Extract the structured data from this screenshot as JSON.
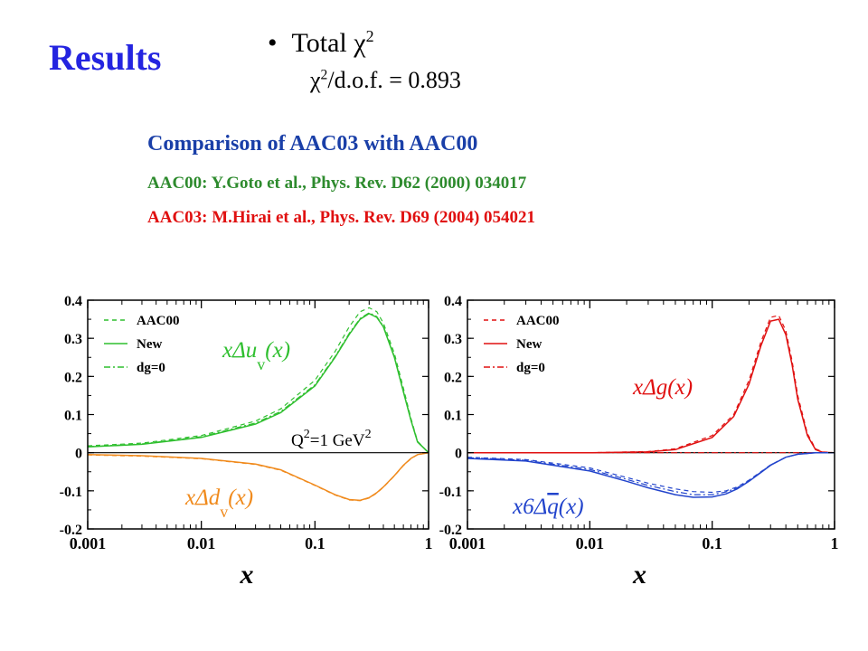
{
  "slide": {
    "title": "Results",
    "bullet_label": "Total",
    "chi_symbol": "χ",
    "chi_exponent": "2",
    "chi_text": "/d.o.f. = 0.893",
    "comparison_title": "Comparison of AAC03 with AAC00",
    "ref_aac00": "AAC00: Y.Goto et al., Phys. Rev. D62 (2000) 034017",
    "ref_aac03": "AAC03: M.Hirai et al., Phys. Rev. D69 (2004) 054021"
  },
  "chart_data": [
    {
      "type": "line",
      "xscale": "log",
      "xlim": [
        0.001,
        1
      ],
      "ylim": [
        -0.2,
        0.4
      ],
      "xticks": [
        "0.001",
        "0.01",
        "0.1",
        "1"
      ],
      "yticks": [
        "0.4",
        "0.3",
        "0.2",
        "0.1",
        "0",
        "-0.1",
        "-0.2"
      ],
      "xlabel": "x",
      "ylabel": "",
      "legend_position": "top-left",
      "legend": [
        {
          "label": "AAC00",
          "style": "dashed"
        },
        {
          "label": "New",
          "style": "solid"
        },
        {
          "label": "dg=0",
          "style": "dash-dot"
        }
      ],
      "annotations": [
        {
          "text_main": "xΔu",
          "text_sub": "v",
          "text_end": "(x)",
          "color": "#2fbf2f"
        },
        {
          "text_main": "xΔd",
          "text_sub": "v",
          "text_end": "(x)",
          "color": "#f08a1c"
        },
        {
          "text_main": "Q",
          "text_sup": "2",
          "text_mid": "=1 GeV",
          "text_sup2": "2",
          "color": "#000000"
        }
      ],
      "series": [
        {
          "name": "xΔu_v AAC00",
          "group": "up",
          "style": "dashed",
          "color": "#2fbf2f",
          "x": [
            0.001,
            0.003,
            0.01,
            0.03,
            0.05,
            0.1,
            0.15,
            0.2,
            0.25,
            0.3,
            0.35,
            0.4,
            0.5,
            0.6,
            0.7,
            0.8,
            1.0
          ],
          "values": [
            0.018,
            0.025,
            0.045,
            0.083,
            0.115,
            0.19,
            0.265,
            0.33,
            0.37,
            0.38,
            0.37,
            0.34,
            0.26,
            0.17,
            0.09,
            0.03,
            0.0
          ]
        },
        {
          "name": "xΔu_v New",
          "group": "up",
          "style": "solid",
          "color": "#2fbf2f",
          "x": [
            0.001,
            0.003,
            0.01,
            0.03,
            0.05,
            0.1,
            0.15,
            0.2,
            0.25,
            0.3,
            0.35,
            0.4,
            0.5,
            0.6,
            0.7,
            0.8,
            1.0
          ],
          "values": [
            0.015,
            0.022,
            0.04,
            0.075,
            0.105,
            0.175,
            0.25,
            0.31,
            0.35,
            0.365,
            0.355,
            0.33,
            0.25,
            0.16,
            0.085,
            0.028,
            0.0
          ]
        },
        {
          "name": "xΔu_v dg=0",
          "group": "up",
          "style": "dash-dot",
          "color": "#2fbf2f",
          "x": [
            0.001,
            0.003,
            0.01,
            0.03,
            0.05,
            0.1,
            0.15,
            0.2,
            0.25,
            0.3,
            0.35,
            0.4,
            0.5,
            0.6,
            0.7,
            0.8,
            1.0
          ],
          "values": [
            0.016,
            0.023,
            0.042,
            0.078,
            0.108,
            0.178,
            0.252,
            0.313,
            0.352,
            0.367,
            0.357,
            0.332,
            0.252,
            0.162,
            0.086,
            0.029,
            0.0
          ]
        },
        {
          "name": "xΔd_v New",
          "group": "down",
          "style": "solid",
          "color": "#f08a1c",
          "x": [
            0.001,
            0.003,
            0.01,
            0.03,
            0.05,
            0.1,
            0.15,
            0.2,
            0.25,
            0.3,
            0.35,
            0.4,
            0.5,
            0.6,
            0.7,
            0.8,
            1.0
          ],
          "values": [
            -0.005,
            -0.008,
            -0.015,
            -0.03,
            -0.045,
            -0.085,
            -0.11,
            -0.123,
            -0.125,
            -0.118,
            -0.105,
            -0.09,
            -0.06,
            -0.033,
            -0.015,
            -0.005,
            0.0
          ]
        },
        {
          "name": "xΔd_v AAC00",
          "group": "down",
          "style": "dashed",
          "color": "#f08a1c",
          "x": [
            0.001,
            0.003,
            0.01,
            0.03,
            0.05,
            0.1,
            0.15,
            0.2,
            0.25,
            0.3,
            0.35,
            0.4,
            0.5,
            0.6,
            0.7,
            0.8,
            1.0
          ],
          "values": [
            -0.006,
            -0.009,
            -0.016,
            -0.031,
            -0.046,
            -0.086,
            -0.111,
            -0.124,
            -0.126,
            -0.119,
            -0.106,
            -0.091,
            -0.061,
            -0.034,
            -0.016,
            -0.005,
            0.0
          ]
        }
      ]
    },
    {
      "type": "line",
      "xscale": "log",
      "xlim": [
        0.001,
        1
      ],
      "ylim": [
        -0.2,
        0.4
      ],
      "xticks": [
        "0.001",
        "0.01",
        "0.1",
        "1"
      ],
      "yticks": [
        "0.4",
        "0.3",
        "0.2",
        "0.1",
        "0",
        "-0.1",
        "-0.2"
      ],
      "xlabel": "x",
      "ylabel": "",
      "legend_position": "top-left",
      "legend": [
        {
          "label": "AAC00",
          "style": "dashed"
        },
        {
          "label": "New",
          "style": "solid"
        },
        {
          "label": "dg=0",
          "style": "dash-dot"
        }
      ],
      "annotations": [
        {
          "text_main": "xΔg(x)",
          "color": "#e01010"
        },
        {
          "text_main": "x6Δ",
          "text_over": "q",
          "text_end": "(x)",
          "color": "#2244cc"
        }
      ],
      "series": [
        {
          "name": "xΔg AAC00",
          "group": "gluon",
          "style": "dashed",
          "color": "#e01010",
          "x": [
            0.001,
            0.01,
            0.03,
            0.05,
            0.1,
            0.15,
            0.2,
            0.25,
            0.3,
            0.35,
            0.4,
            0.45,
            0.5,
            0.6,
            0.7,
            0.8,
            1.0
          ],
          "values": [
            0.0,
            0.0,
            0.003,
            0.01,
            0.045,
            0.1,
            0.19,
            0.29,
            0.355,
            0.36,
            0.32,
            0.24,
            0.15,
            0.05,
            0.01,
            0.002,
            0.0
          ]
        },
        {
          "name": "xΔg New",
          "group": "gluon",
          "style": "solid",
          "color": "#e01010",
          "x": [
            0.001,
            0.01,
            0.03,
            0.05,
            0.1,
            0.15,
            0.2,
            0.25,
            0.3,
            0.35,
            0.4,
            0.45,
            0.5,
            0.6,
            0.7,
            0.8,
            1.0
          ],
          "values": [
            0.0,
            0.0,
            0.002,
            0.008,
            0.04,
            0.095,
            0.18,
            0.28,
            0.345,
            0.35,
            0.31,
            0.23,
            0.14,
            0.045,
            0.008,
            0.001,
            0.0
          ]
        },
        {
          "name": "xΔg dg=0",
          "group": "gluon",
          "style": "dash-dot",
          "color": "#e01010",
          "x": [
            0.001,
            0.01,
            0.1,
            1.0
          ],
          "values": [
            0.0,
            0.0,
            0.0,
            0.0
          ]
        },
        {
          "name": "x6Δq̄ AAC00",
          "group": "sea",
          "style": "dashed",
          "color": "#2244cc",
          "x": [
            0.001,
            0.003,
            0.01,
            0.02,
            0.03,
            0.05,
            0.07,
            0.1,
            0.13,
            0.16,
            0.2,
            0.25,
            0.3,
            0.4,
            0.5,
            0.7,
            1.0
          ],
          "values": [
            -0.012,
            -0.018,
            -0.04,
            -0.065,
            -0.08,
            -0.095,
            -0.102,
            -0.104,
            -0.1,
            -0.09,
            -0.072,
            -0.05,
            -0.032,
            -0.012,
            -0.004,
            0.0,
            0.0
          ]
        },
        {
          "name": "x6Δq̄ New",
          "group": "sea",
          "style": "solid",
          "color": "#2244cc",
          "x": [
            0.001,
            0.003,
            0.01,
            0.02,
            0.03,
            0.05,
            0.07,
            0.1,
            0.13,
            0.16,
            0.2,
            0.25,
            0.3,
            0.4,
            0.5,
            0.7,
            1.0
          ],
          "values": [
            -0.015,
            -0.022,
            -0.048,
            -0.075,
            -0.092,
            -0.11,
            -0.117,
            -0.116,
            -0.108,
            -0.095,
            -0.075,
            -0.052,
            -0.033,
            -0.012,
            -0.004,
            0.0,
            0.0
          ]
        },
        {
          "name": "x6Δq̄ dg=0",
          "group": "sea",
          "style": "dash-dot",
          "color": "#2244cc",
          "x": [
            0.001,
            0.003,
            0.01,
            0.02,
            0.03,
            0.05,
            0.07,
            0.1,
            0.13,
            0.16,
            0.2,
            0.25,
            0.3,
            0.4,
            0.5,
            0.7,
            1.0
          ],
          "values": [
            -0.013,
            -0.02,
            -0.044,
            -0.07,
            -0.086,
            -0.102,
            -0.11,
            -0.11,
            -0.103,
            -0.092,
            -0.073,
            -0.051,
            -0.032,
            -0.012,
            -0.004,
            0.0,
            0.0
          ]
        }
      ]
    }
  ]
}
